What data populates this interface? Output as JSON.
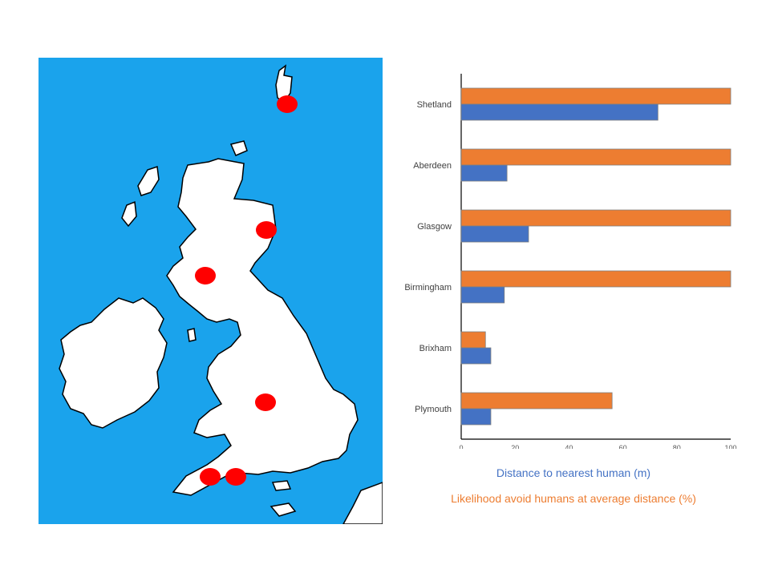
{
  "colors": {
    "sea": "#1aa3ec",
    "land": "#ffffff",
    "marker": "#ff0000",
    "series_blue": "#4472c4",
    "series_orange": "#ed7d31"
  },
  "map": {
    "markers": [
      "Shetland",
      "Aberdeen",
      "Glasgow",
      "Birmingham",
      "Brixham",
      "Plymouth"
    ]
  },
  "chart_data": {
    "type": "bar",
    "orientation": "horizontal",
    "categories": [
      "Shetland",
      "Aberdeen",
      "Glasgow",
      "Birmingham",
      "Brixham",
      "Plymouth"
    ],
    "series": [
      {
        "name": "Likelihood avoid humans at average distance (%)",
        "color": "#ed7d31",
        "values": [
          100,
          100,
          100,
          100,
          9,
          56
        ]
      },
      {
        "name": "Distance to nearest human (m)",
        "color": "#4472c4",
        "values": [
          73,
          17,
          25,
          16,
          11,
          11
        ]
      }
    ],
    "xlim": [
      0,
      100
    ],
    "xticks": [
      "0",
      "20",
      "40",
      "60",
      "80",
      "100"
    ],
    "grid": false,
    "legend_placement": "bottom"
  },
  "legend": {
    "blue_label": "Distance to nearest human (m)",
    "orange_label": "Likelihood avoid humans at average distance (%)"
  }
}
